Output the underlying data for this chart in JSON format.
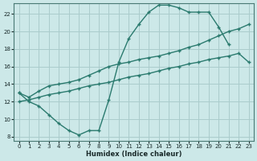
{
  "xlabel": "Humidex (Indice chaleur)",
  "bg_color": "#cce8e8",
  "grid_color": "#aacccc",
  "line_color": "#2a7a6e",
  "xlim": [
    -0.5,
    23.5
  ],
  "ylim": [
    7.5,
    23.2
  ],
  "xticks": [
    0,
    1,
    2,
    3,
    4,
    5,
    6,
    7,
    8,
    9,
    10,
    11,
    12,
    13,
    14,
    15,
    16,
    17,
    18,
    19,
    20,
    21,
    22,
    23
  ],
  "yticks": [
    8,
    10,
    12,
    14,
    16,
    18,
    20,
    22
  ],
  "line1_x": [
    0,
    1,
    2,
    3,
    4,
    5,
    6,
    7,
    8,
    9,
    10,
    11,
    12,
    13,
    14,
    15,
    16,
    17,
    18,
    19,
    20,
    21
  ],
  "line1_y": [
    13,
    12,
    11.5,
    10.5,
    9.5,
    8.7,
    8.2,
    8.7,
    8.7,
    12.2,
    16.5,
    19.2,
    20.8,
    22.2,
    23.0,
    23.0,
    22.7,
    22.2,
    22.2,
    22.2,
    20.5,
    18.5
  ],
  "line2_x": [
    0,
    1,
    2,
    3,
    4,
    5,
    6,
    7,
    8,
    9,
    10,
    11,
    12,
    13,
    14,
    15,
    16,
    17,
    18,
    19,
    20,
    21,
    22,
    23
  ],
  "line2_y": [
    13.0,
    12.5,
    13.2,
    13.8,
    14.0,
    14.2,
    14.5,
    15.0,
    15.5,
    16.0,
    16.3,
    16.5,
    16.8,
    17.0,
    17.2,
    17.5,
    17.8,
    18.2,
    18.5,
    19.0,
    19.5,
    20.0,
    20.3,
    20.8
  ],
  "line3_x": [
    0,
    1,
    2,
    3,
    4,
    5,
    6,
    7,
    8,
    9,
    10,
    11,
    12,
    13,
    14,
    15,
    16,
    17,
    18,
    19,
    20,
    21,
    22,
    23
  ],
  "line3_y": [
    12.0,
    12.2,
    12.5,
    12.8,
    13.0,
    13.2,
    13.5,
    13.8,
    14.0,
    14.2,
    14.5,
    14.8,
    15.0,
    15.2,
    15.5,
    15.8,
    16.0,
    16.3,
    16.5,
    16.8,
    17.0,
    17.2,
    17.5,
    16.5
  ]
}
